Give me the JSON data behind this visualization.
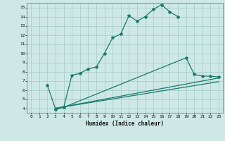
{
  "xlabel": "Humidex (Indice chaleur)",
  "background_color": "#cde8e5",
  "grid_color": "#aacfcb",
  "line_color": "#1a7a6e",
  "xlim": [
    -0.5,
    23.5
  ],
  "ylim": [
    3.5,
    15.5
  ],
  "xticks": [
    0,
    1,
    2,
    3,
    4,
    5,
    6,
    7,
    8,
    9,
    10,
    11,
    12,
    13,
    14,
    15,
    16,
    17,
    18,
    19,
    20,
    21,
    22,
    23
  ],
  "yticks": [
    4,
    5,
    6,
    7,
    8,
    9,
    10,
    11,
    12,
    13,
    14,
    15
  ],
  "curve1_x": [
    2,
    3,
    4,
    5,
    6,
    7,
    8,
    9,
    10,
    11,
    12,
    13,
    14,
    15,
    16,
    17,
    18
  ],
  "curve1_y": [
    6.5,
    3.9,
    4.1,
    7.6,
    7.8,
    8.3,
    8.5,
    10.0,
    11.7,
    12.1,
    14.1,
    13.5,
    14.0,
    14.8,
    15.3,
    14.5,
    14.0
  ],
  "curve2_x": [
    3,
    4,
    19,
    20,
    21,
    22,
    23
  ],
  "curve2_y": [
    3.9,
    4.1,
    9.5,
    7.7,
    7.5,
    7.5,
    7.4
  ],
  "curve3_x": [
    3,
    23
  ],
  "curve3_y": [
    4.0,
    7.3
  ],
  "curve4_x": [
    3,
    23
  ],
  "curve4_y": [
    4.0,
    6.9
  ]
}
